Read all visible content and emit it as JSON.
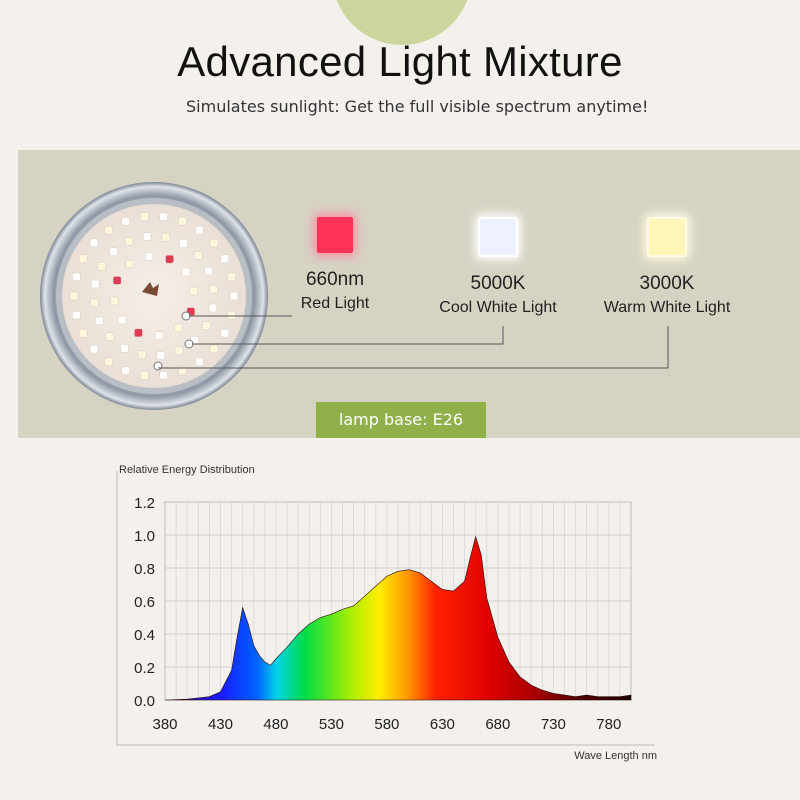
{
  "header": {
    "title": "Advanced Light Mixture",
    "subtitle": "Simulates sunlight: Get the full visible spectrum anytime!"
  },
  "features": [
    {
      "spec": "660nm",
      "name": "Red Light",
      "color": "#ff3355"
    },
    {
      "spec": "5000K",
      "name": "Cool White Light",
      "color": "#e6ecff"
    },
    {
      "spec": "3000K",
      "name": "Warm White Light",
      "color": "#fff6b8"
    }
  ],
  "lamp": {
    "base_label": "lamp base: E26"
  },
  "chart_data": {
    "type": "area",
    "ylabel": "Relative Energy Distribution",
    "xlabel": "Wave Length nm",
    "xlim": [
      380,
      800
    ],
    "ylim": [
      0,
      1.2
    ],
    "x_ticks": [
      380,
      430,
      480,
      530,
      580,
      630,
      680,
      730,
      780
    ],
    "y_ticks": [
      0.0,
      0.2,
      0.4,
      0.6,
      0.8,
      1.0,
      1.2
    ],
    "grid": true,
    "x": [
      380,
      400,
      420,
      430,
      440,
      445,
      450,
      455,
      460,
      465,
      470,
      475,
      480,
      490,
      500,
      510,
      520,
      530,
      540,
      550,
      560,
      570,
      580,
      590,
      600,
      610,
      620,
      630,
      640,
      650,
      655,
      660,
      665,
      670,
      680,
      690,
      700,
      710,
      720,
      730,
      740,
      750,
      760,
      770,
      780,
      790,
      800
    ],
    "values": [
      0.0,
      0.005,
      0.02,
      0.05,
      0.18,
      0.38,
      0.56,
      0.46,
      0.33,
      0.27,
      0.23,
      0.21,
      0.25,
      0.32,
      0.4,
      0.46,
      0.5,
      0.52,
      0.55,
      0.57,
      0.63,
      0.69,
      0.75,
      0.78,
      0.79,
      0.77,
      0.72,
      0.67,
      0.66,
      0.72,
      0.86,
      0.99,
      0.88,
      0.62,
      0.38,
      0.23,
      0.14,
      0.09,
      0.06,
      0.04,
      0.03,
      0.02,
      0.03,
      0.02,
      0.02,
      0.02,
      0.03
    ]
  }
}
